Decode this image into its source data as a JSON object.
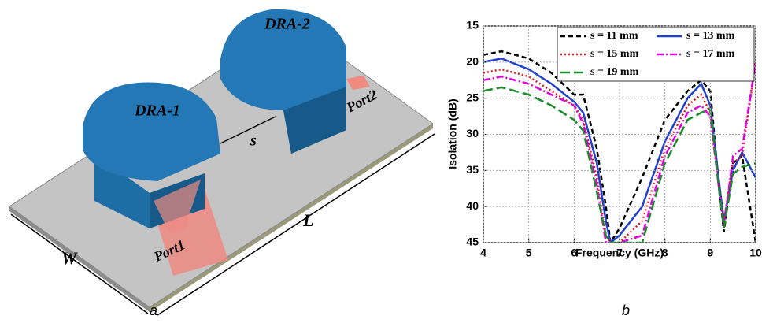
{
  "figure_a": {
    "panel_label": "a",
    "labels": {
      "dra1": "DRA-1",
      "dra2": "DRA-2",
      "s": "s",
      "port1": "Port1",
      "port2": "Port2",
      "L": "L",
      "W": "W"
    }
  },
  "chart_data": {
    "type": "line",
    "panel_label": "b",
    "x_label": "Frequency (GHz)",
    "y_label": "Isolation (dB)",
    "x": [
      4,
      4.4,
      5,
      5.5,
      6,
      6.2,
      6.5,
      6.7,
      6.8,
      7,
      7.5,
      8,
      8.5,
      8.8,
      9,
      9.2,
      9.3,
      9.5,
      9.7,
      10
    ],
    "series": [
      {
        "name": "s = 11 mm",
        "color": "#000000",
        "line_style": "dashed",
        "values": [
          19,
          18.5,
          19.5,
          21.5,
          24.5,
          24.5,
          32,
          40,
          45,
          43,
          36,
          28,
          24,
          22.5,
          24,
          38,
          43.5,
          34,
          33,
          45
        ]
      },
      {
        "name": "s = 13 mm",
        "color": "#1f3fd0",
        "line_style": "solid",
        "values": [
          20,
          19.5,
          21,
          23,
          25.5,
          27,
          34,
          42,
          45,
          44,
          40,
          31,
          25,
          23,
          26,
          37,
          42,
          35,
          32.5,
          36
        ]
      },
      {
        "name": "s = 15 mm",
        "color": "#e02020",
        "line_style": "dotted",
        "values": [
          21.5,
          21,
          22,
          24,
          26,
          28,
          36,
          44,
          45,
          45,
          42,
          32,
          26,
          24.5,
          27,
          38,
          42,
          34,
          33,
          20
        ]
      },
      {
        "name": "s = 17 mm",
        "color": "#e000e0",
        "line_style": "dashdot",
        "values": [
          22.5,
          22,
          23,
          24.5,
          26,
          28.5,
          37,
          45,
          45,
          45,
          44,
          33,
          27,
          26,
          27.5,
          38,
          43,
          33,
          32,
          20
        ]
      },
      {
        "name": "s = 19 mm",
        "color": "#1a8a2a",
        "line_style": "longdash",
        "values": [
          24,
          23.5,
          24.5,
          26,
          28,
          29.5,
          38,
          44,
          45,
          45,
          45,
          34,
          28,
          27,
          26.5,
          38,
          43,
          35.5,
          34.5,
          34
        ]
      }
    ],
    "xlim": [
      4,
      10
    ],
    "xticks": [
      4,
      5,
      6,
      7,
      8,
      9,
      10
    ],
    "ylim": [
      15,
      45
    ],
    "y_inverted": true,
    "yticks": [
      15,
      20,
      25,
      30,
      35,
      40,
      45
    ],
    "grid": true,
    "legend": "top-right"
  }
}
